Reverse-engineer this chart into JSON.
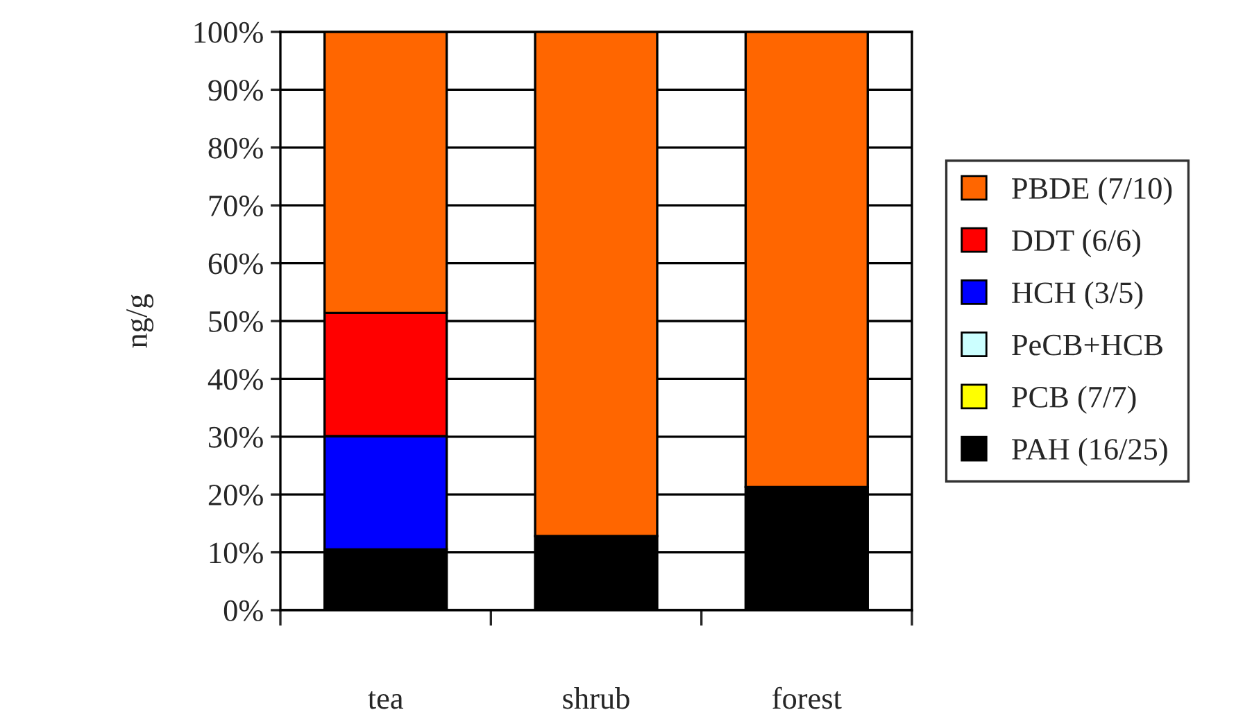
{
  "chart_data": {
    "type": "bar",
    "stacked": true,
    "ylabel": "ng/g",
    "categories": [
      "tea",
      "shrub",
      "forest"
    ],
    "series": [
      {
        "name": "PAH (16/25)",
        "color": "#000000",
        "values": [
          10.5,
          12.8,
          21.3
        ]
      },
      {
        "name": "PCB (7/7)",
        "color": "#ffff00",
        "values": [
          0,
          0,
          0
        ]
      },
      {
        "name": "PeCB+HCB",
        "color": "#ccffff",
        "values": [
          0,
          0,
          0
        ]
      },
      {
        "name": "HCH (3/5)",
        "color": "#0000ff",
        "values": [
          19.6,
          0,
          0
        ]
      },
      {
        "name": "DDT (6/6)",
        "color": "#ff0000",
        "values": [
          21.3,
          0,
          0
        ]
      },
      {
        "name": "PBDE (7/10)",
        "color": "#ff6600",
        "values": [
          48.6,
          87.2,
          78.7
        ]
      }
    ],
    "ylim": [
      0,
      100
    ],
    "yticks": [
      {
        "value": 0,
        "label": "0%"
      },
      {
        "value": 10,
        "label": "10%"
      },
      {
        "value": 20,
        "label": "20%"
      },
      {
        "value": 30,
        "label": "30%"
      },
      {
        "value": 40,
        "label": "40%"
      },
      {
        "value": 50,
        "label": "50%"
      },
      {
        "value": 60,
        "label": "60%"
      },
      {
        "value": 70,
        "label": "70%"
      },
      {
        "value": 80,
        "label": "80%"
      },
      {
        "value": 90,
        "label": "90%"
      },
      {
        "value": 100,
        "label": "100%"
      }
    ],
    "grid": "y",
    "legend": "right"
  }
}
